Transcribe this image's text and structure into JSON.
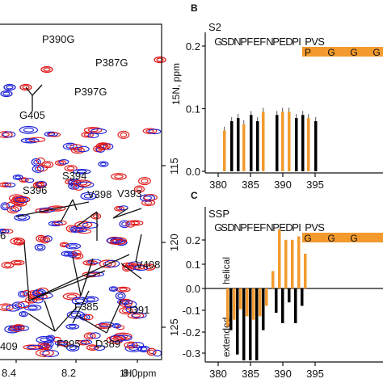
{
  "panel_b_letter": "B",
  "panel_c_letter": "C",
  "chart_data": [
    {
      "type": "scatter",
      "panel": "A",
      "xlabel": "1H, ppm",
      "ylabel": "15N, ppm",
      "x_ticks": [
        "8.4",
        "8.2",
        "8.0"
      ],
      "y_ticks": [
        "115",
        "120",
        "125"
      ],
      "annotations": [
        "P390G",
        "P387G",
        "P397G",
        "G405",
        "S394",
        "S396",
        "V398",
        "V393",
        "6",
        "V408",
        "F385",
        "I391",
        "F395",
        "D389",
        "409"
      ],
      "colors": {
        "series_1": "#1e22d8",
        "series_2": "#e01818"
      }
    },
    {
      "type": "bar",
      "panel": "B",
      "ylabel": "S2",
      "ylim": [
        0,
        0.2
      ],
      "y_ticks": [
        "0.0",
        "0.1",
        "0.2"
      ],
      "x_ticks": [
        "380",
        "385",
        "390",
        "395"
      ],
      "sequence": [
        "G",
        "S",
        "D",
        "N",
        "P",
        "F",
        "E",
        "F",
        "N",
        "P",
        "E",
        "D",
        "P",
        "I",
        "P",
        "V",
        "S"
      ],
      "mutations": [
        "P",
        "G",
        "G",
        "G"
      ],
      "residues": [
        381,
        382,
        383,
        384,
        385,
        386,
        387,
        389,
        390,
        391,
        392,
        393,
        394,
        395
      ],
      "values": [
        0.065,
        0.08,
        0.085,
        0.075,
        0.09,
        0.08,
        0.095,
        0.09,
        0.095,
        0.095,
        0.085,
        0.09,
        0.085,
        0.08
      ],
      "colors": {
        "wild_type": "#000000",
        "mutant": "#f39a2e"
      }
    },
    {
      "type": "bar",
      "panel": "C",
      "ylabel": "SSP",
      "ylim": [
        -0.3,
        0.2
      ],
      "y_ticks": [
        "-0.3",
        "-0.2",
        "-0.1",
        "0.0",
        "0.1",
        "0.2"
      ],
      "x_ticks": [
        "380",
        "385",
        "390",
        "395"
      ],
      "region_labels": [
        "helical",
        "extended"
      ],
      "sequence": [
        "G",
        "S",
        "D",
        "N",
        "P",
        "F",
        "E",
        "F",
        "N",
        "P",
        "E",
        "D",
        "P",
        "I",
        "P",
        "V",
        "S"
      ],
      "mutations": [
        "G",
        "G",
        "G"
      ],
      "series": [
        {
          "residues": [
            382,
            383,
            384,
            385,
            386,
            387,
            389,
            390,
            391,
            392,
            393
          ],
          "values": [
            -0.12,
            -0.19,
            -0.23,
            -0.22,
            -0.21,
            -0.12,
            -0.07,
            -0.1,
            -0.04,
            -0.1,
            -0.05
          ]
        },
        {
          "residues": [
            381,
            382,
            383,
            384,
            385,
            386,
            387,
            388,
            389,
            390,
            391,
            392,
            393
          ],
          "values": [
            -0.11,
            -0.09,
            -0.06,
            -0.08,
            -0.09,
            -0.08,
            -0.05,
            0.05,
            0.17,
            0.14,
            0.14,
            0.15,
            0.1
          ]
        }
      ],
      "colors": {
        "wild_type": "#000000",
        "mutant": "#f39a2e"
      }
    }
  ]
}
